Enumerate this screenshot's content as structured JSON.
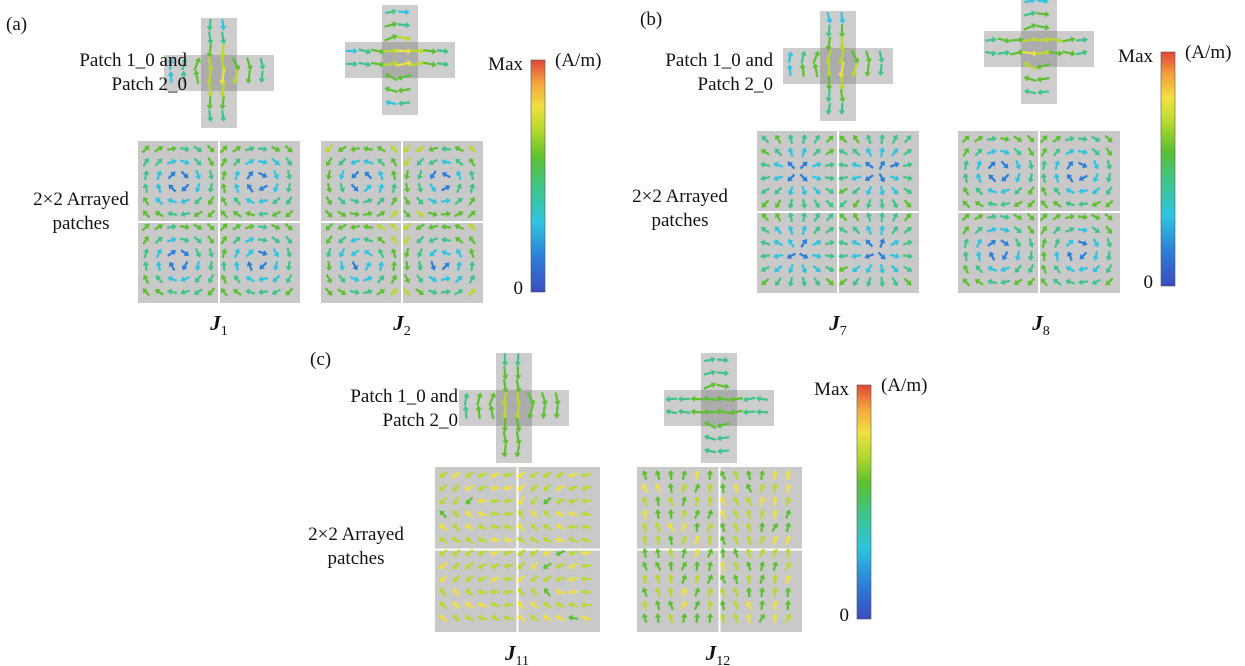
{
  "panels": [
    {
      "tag": "(a)",
      "row_label_top": [
        "Patch 1_0 and",
        "Patch 2_0"
      ],
      "row_label_bottom": [
        "2×2 Arrayed",
        "patches"
      ],
      "modes": [
        {
          "sym": "J",
          "sub": "1"
        },
        {
          "sym": "J",
          "sub": "2"
        }
      ],
      "colorbar": {
        "max_label": "Max",
        "min_label": "0",
        "unit": "(A/m)"
      }
    },
    {
      "tag": "(b)",
      "row_label_top": [
        "Patch 1_0 and",
        "Patch 2_0"
      ],
      "row_label_bottom": [
        "2×2 Arrayed",
        "patches"
      ],
      "modes": [
        {
          "sym": "J",
          "sub": "7"
        },
        {
          "sym": "J",
          "sub": "8"
        }
      ],
      "colorbar": {
        "max_label": "Max",
        "min_label": "0",
        "unit": "(A/m)"
      }
    },
    {
      "tag": "(c)",
      "row_label_top": [
        "Patch 1_0 and",
        "Patch 2_0"
      ],
      "row_label_bottom": [
        "2×2 Arrayed",
        "patches"
      ],
      "modes": [
        {
          "sym": "J",
          "sub": "11"
        },
        {
          "sym": "J",
          "sub": "12"
        }
      ],
      "colorbar": {
        "max_label": "Max",
        "min_label": "0",
        "unit": "(A/m)"
      }
    }
  ],
  "colormap": [
    "#3b4cc0",
    "#2c7fd8",
    "#2fc4e0",
    "#3fc48a",
    "#5cc030",
    "#b8d92e",
    "#f0e040",
    "#f4a43c",
    "#e2463a"
  ]
}
